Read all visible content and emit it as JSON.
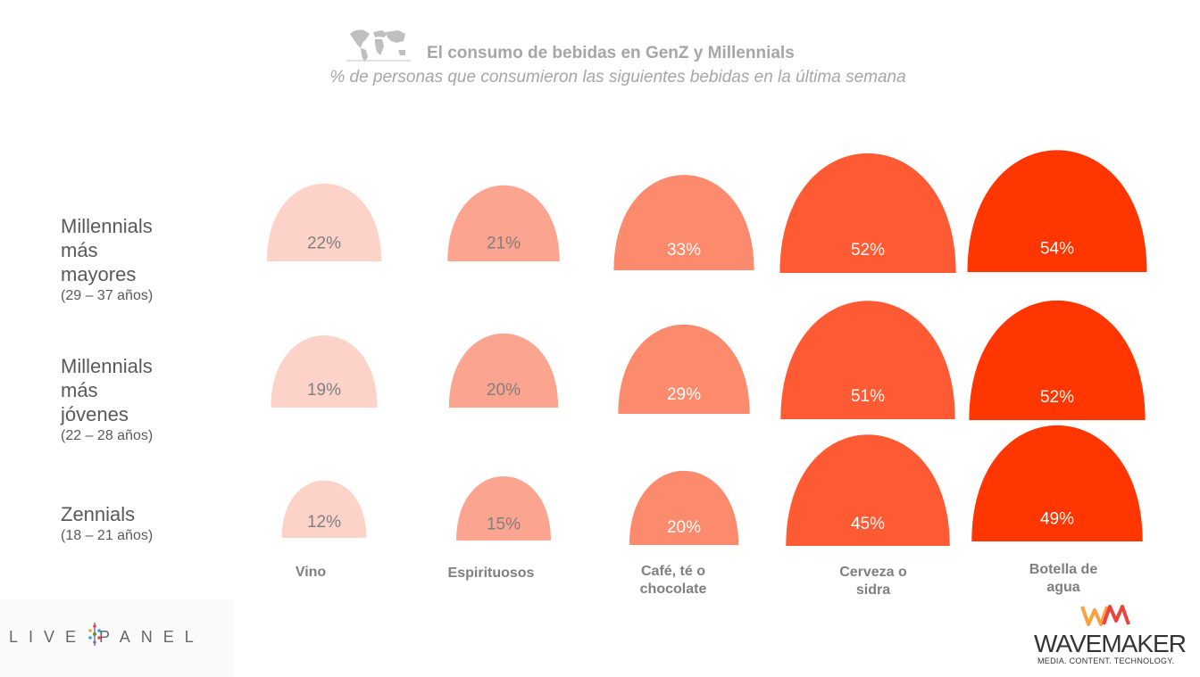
{
  "header": {
    "title": "El consumo de bebidas en GenZ y Millennials",
    "subtitle": "% de personas que consumieron las siguientes bebidas en la última semana",
    "icon": "world-map-icon"
  },
  "rows": [
    {
      "name_lines": [
        "Millennials",
        "más",
        "mayores"
      ],
      "age": "(29 – 37 años)"
    },
    {
      "name_lines": [
        "Millennials",
        "más",
        "jóvenes"
      ],
      "age": "(22 – 28 años)"
    },
    {
      "name_lines": [
        "Zennials"
      ],
      "age": "(18 – 21 años)"
    }
  ],
  "chart_data": {
    "type": "table",
    "categories": [
      "Vino",
      "Espirituosos",
      "Café, té o chocolate",
      "Cerveza o sidra",
      "Botella de agua"
    ],
    "category_lines": [
      [
        "Vino"
      ],
      [
        "Espirituosos"
      ],
      [
        "Café, té o",
        "chocolate"
      ],
      [
        "Cerveza o",
        "sidra"
      ],
      [
        "Botella de",
        "agua"
      ]
    ],
    "series": [
      {
        "name": "Millennials más mayores (29 – 37 años)",
        "values": [
          22,
          21,
          33,
          52,
          54
        ]
      },
      {
        "name": "Millennials más jóvenes (22 – 28 años)",
        "values": [
          19,
          20,
          29,
          51,
          52
        ]
      },
      {
        "name": "Zennials (18 – 21 años)",
        "values": [
          12,
          15,
          20,
          45,
          49
        ]
      }
    ],
    "value_labels": [
      [
        "22%",
        "21%",
        "33%",
        "52%",
        "54%"
      ],
      [
        "19%",
        "20%",
        "29%",
        "51%",
        "52%"
      ],
      [
        "12%",
        "15%",
        "20%",
        "45%",
        "49%"
      ]
    ],
    "colors": [
      "#fdd3c9",
      "#fba48f",
      "#fc8a6c",
      "#fe5a33",
      "#ff3600"
    ],
    "label_colors": [
      "#7f7f7f",
      "#7f7f7f",
      "#ffffff",
      "#ffffff",
      "#ffffff"
    ]
  },
  "logos": {
    "livepanel_left": "LIVE",
    "livepanel_right": "PANEL",
    "wavemaker_name": "WAVEMAKER",
    "wavemaker_tagline": "MEDIA. CONTENT. TECHNOLOGY.",
    "wavemaker_mark": "WM",
    "wavemaker_mark_colors": [
      "#f9a03f",
      "#e8453c"
    ]
  }
}
